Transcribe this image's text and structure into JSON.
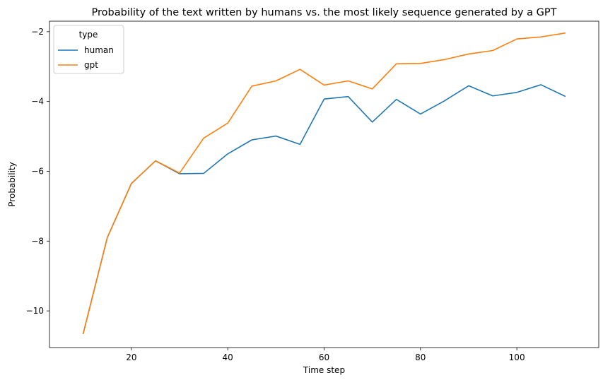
{
  "chart_data": {
    "type": "line",
    "title": "Probability of the text written by humans vs. the most likely sequence generated by a GPT",
    "xlabel": "Time step",
    "ylabel": "Probability",
    "xlim": [
      3,
      117
    ],
    "ylim": [
      -11.05,
      -1.7
    ],
    "xticks": [
      20,
      40,
      60,
      80,
      100
    ],
    "yticks": [
      -10,
      -8,
      -6,
      -4,
      -2
    ],
    "xtick_labels": [
      "20",
      "40",
      "60",
      "80",
      "100"
    ],
    "ytick_labels": [
      "−10",
      "−8",
      "−6",
      "−4",
      "−2"
    ],
    "grid": false,
    "legend": {
      "title": "type",
      "placement": "top-left",
      "entries": [
        "human",
        "gpt"
      ]
    },
    "x": [
      10,
      15,
      20,
      25,
      30,
      35,
      40,
      45,
      50,
      55,
      60,
      65,
      70,
      75,
      80,
      85,
      90,
      95,
      100,
      105,
      110
    ],
    "series": [
      {
        "name": "human",
        "color": "#1f77b4",
        "values": [
          -10.65,
          -7.9,
          -6.35,
          -5.7,
          -6.07,
          -6.06,
          -5.5,
          -5.1,
          -4.99,
          -5.23,
          -3.93,
          -3.86,
          -4.59,
          -3.94,
          -4.36,
          -3.98,
          -3.55,
          -3.84,
          -3.74,
          -3.52,
          -3.85
        ]
      },
      {
        "name": "gpt",
        "color": "#ff7f0e",
        "values": [
          -10.65,
          -7.9,
          -6.35,
          -5.7,
          -6.05,
          -5.05,
          -4.62,
          -3.56,
          -3.41,
          -3.08,
          -3.53,
          -3.41,
          -3.64,
          -2.92,
          -2.91,
          -2.8,
          -2.64,
          -2.54,
          -2.21,
          -2.15,
          -2.04
        ]
      }
    ]
  }
}
